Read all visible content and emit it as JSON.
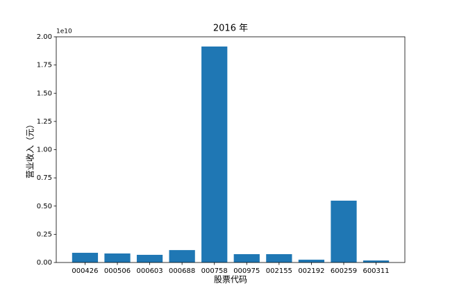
{
  "chart_data": {
    "type": "bar",
    "title": "2016 年",
    "x_label": "股票代码",
    "y_label": "营业收入（元）",
    "y_offset_label": "1e10",
    "categories": [
      "000426",
      "000506",
      "000603",
      "000688",
      "000758",
      "000975",
      "002155",
      "002192",
      "600259",
      "600311"
    ],
    "values": [
      0.086,
      0.08,
      0.068,
      0.11,
      1.914,
      0.074,
      0.074,
      0.025,
      0.548,
      0.018
    ],
    "color": "#1f77b4",
    "ylim": [
      0,
      2
    ],
    "yticks": [
      {
        "value": 0,
        "label": "0.00"
      },
      {
        "value": 0.25,
        "label": "0.25"
      },
      {
        "value": 0.5,
        "label": "0.50"
      },
      {
        "value": 0.75,
        "label": "0.75"
      },
      {
        "value": 1,
        "label": "1.00"
      },
      {
        "value": 1.25,
        "label": "1.25"
      },
      {
        "value": 1.5,
        "label": "1.50"
      },
      {
        "value": 1.75,
        "label": "1.75"
      },
      {
        "value": 2,
        "label": "2.00"
      }
    ],
    "grid": false
  }
}
